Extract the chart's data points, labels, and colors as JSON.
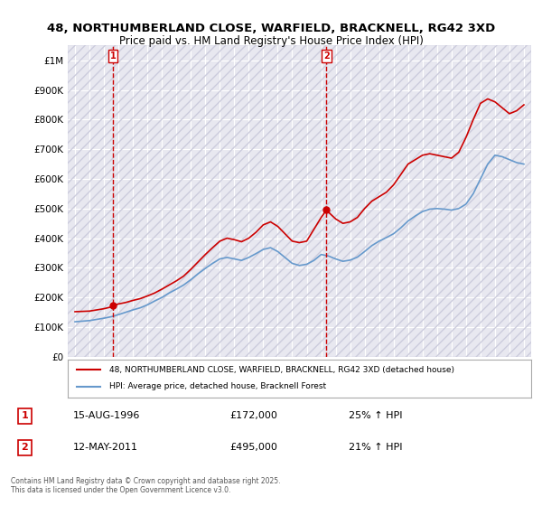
{
  "title1": "48, NORTHUMBERLAND CLOSE, WARFIELD, BRACKNELL, RG42 3XD",
  "title2": "Price paid vs. HM Land Registry's House Price Index (HPI)",
  "legend_line1": "48, NORTHUMBERLAND CLOSE, WARFIELD, BRACKNELL, RG42 3XD (detached house)",
  "legend_line2": "HPI: Average price, detached house, Bracknell Forest",
  "annotation1_label": "1",
  "annotation1_date": "15-AUG-1996",
  "annotation1_price": "£172,000",
  "annotation1_hpi": "25% ↑ HPI",
  "annotation2_label": "2",
  "annotation2_date": "12-MAY-2011",
  "annotation2_price": "£495,000",
  "annotation2_hpi": "21% ↑ HPI",
  "footnote": "Contains HM Land Registry data © Crown copyright and database right 2025.\nThis data is licensed under the Open Government Licence v3.0.",
  "red_color": "#cc0000",
  "blue_color": "#6699cc",
  "background_color": "#ffffff",
  "plot_bg_color": "#e8e8f0",
  "grid_color": "#ffffff",
  "ylim": [
    0,
    1050000
  ],
  "yticks": [
    0,
    100000,
    200000,
    300000,
    400000,
    500000,
    600000,
    700000,
    800000,
    900000,
    1000000
  ],
  "ytick_labels": [
    "£0",
    "£100K",
    "£200K",
    "£300K",
    "£400K",
    "£500K",
    "£600K",
    "£700K",
    "£800K",
    "£900K",
    "£1M"
  ],
  "marker1_x": 1996.625,
  "marker1_y": 172000,
  "marker2_x": 2011.36,
  "marker2_y": 495000,
  "vline1_x": 1996.625,
  "vline2_x": 2011.36,
  "red_series_x": [
    1994.0,
    1994.5,
    1995.0,
    1995.5,
    1996.0,
    1996.5,
    1996.625,
    1997.0,
    1997.5,
    1998.0,
    1998.5,
    1999.0,
    1999.5,
    2000.0,
    2000.5,
    2001.0,
    2001.5,
    2002.0,
    2002.5,
    2003.0,
    2003.5,
    2004.0,
    2004.5,
    2005.0,
    2005.5,
    2006.0,
    2006.5,
    2007.0,
    2007.5,
    2008.0,
    2008.5,
    2009.0,
    2009.5,
    2010.0,
    2010.5,
    2011.0,
    2011.36,
    2011.5,
    2012.0,
    2012.5,
    2013.0,
    2013.5,
    2014.0,
    2014.5,
    2015.0,
    2015.5,
    2016.0,
    2016.5,
    2017.0,
    2017.5,
    2018.0,
    2018.5,
    2019.0,
    2019.5,
    2020.0,
    2020.5,
    2021.0,
    2021.5,
    2022.0,
    2022.5,
    2023.0,
    2023.5,
    2024.0,
    2024.5,
    2025.0
  ],
  "red_series_y": [
    152000,
    153000,
    154000,
    158000,
    162000,
    168000,
    172000,
    178000,
    183000,
    190000,
    196000,
    205000,
    215000,
    228000,
    242000,
    256000,
    272000,
    295000,
    320000,
    345000,
    368000,
    390000,
    400000,
    395000,
    388000,
    400000,
    420000,
    445000,
    455000,
    440000,
    415000,
    390000,
    385000,
    390000,
    430000,
    470000,
    495000,
    488000,
    465000,
    450000,
    455000,
    470000,
    500000,
    525000,
    540000,
    555000,
    580000,
    615000,
    650000,
    665000,
    680000,
    685000,
    680000,
    675000,
    670000,
    690000,
    740000,
    800000,
    855000,
    870000,
    860000,
    840000,
    820000,
    830000,
    850000
  ],
  "blue_series_x": [
    1994.0,
    1994.5,
    1995.0,
    1995.5,
    1996.0,
    1996.5,
    1997.0,
    1997.5,
    1998.0,
    1998.5,
    1999.0,
    1999.5,
    2000.0,
    2000.5,
    2001.0,
    2001.5,
    2002.0,
    2002.5,
    2003.0,
    2003.5,
    2004.0,
    2004.5,
    2005.0,
    2005.5,
    2006.0,
    2006.5,
    2007.0,
    2007.5,
    2008.0,
    2008.5,
    2009.0,
    2009.5,
    2010.0,
    2010.5,
    2011.0,
    2011.5,
    2012.0,
    2012.5,
    2013.0,
    2013.5,
    2014.0,
    2014.5,
    2015.0,
    2015.5,
    2016.0,
    2016.5,
    2017.0,
    2017.5,
    2018.0,
    2018.5,
    2019.0,
    2019.5,
    2020.0,
    2020.5,
    2021.0,
    2021.5,
    2022.0,
    2022.5,
    2023.0,
    2023.5,
    2024.0,
    2024.5,
    2025.0
  ],
  "blue_series_y": [
    118000,
    120000,
    122000,
    126000,
    130000,
    135000,
    142000,
    150000,
    158000,
    165000,
    175000,
    188000,
    200000,
    215000,
    228000,
    242000,
    260000,
    280000,
    298000,
    315000,
    330000,
    335000,
    330000,
    325000,
    335000,
    348000,
    362000,
    368000,
    355000,
    335000,
    315000,
    308000,
    312000,
    325000,
    345000,
    340000,
    330000,
    322000,
    326000,
    336000,
    355000,
    375000,
    390000,
    402000,
    415000,
    435000,
    458000,
    475000,
    490000,
    498000,
    500000,
    498000,
    495000,
    500000,
    515000,
    550000,
    600000,
    650000,
    680000,
    675000,
    665000,
    655000,
    650000
  ],
  "xlim": [
    1993.5,
    2025.5
  ],
  "xticks": [
    1994,
    1995,
    1996,
    1997,
    1998,
    1999,
    2000,
    2001,
    2002,
    2003,
    2004,
    2005,
    2006,
    2007,
    2008,
    2009,
    2010,
    2011,
    2012,
    2013,
    2014,
    2015,
    2016,
    2017,
    2018,
    2019,
    2020,
    2021,
    2022,
    2023,
    2024,
    2025
  ]
}
